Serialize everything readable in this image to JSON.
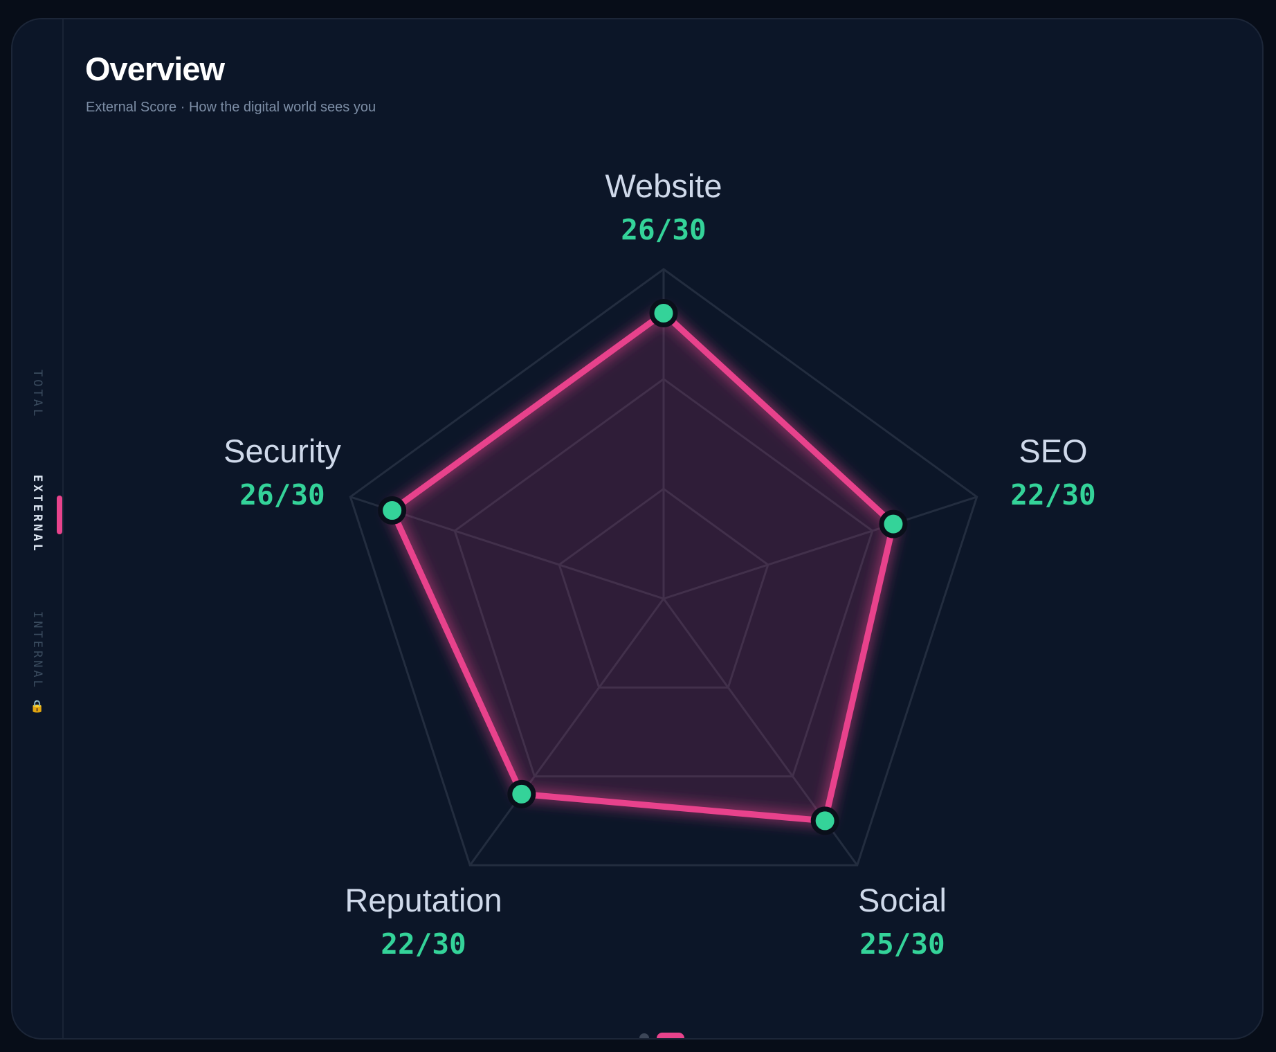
{
  "header": {
    "title": "Overview",
    "subtitle": "External Score · How the digital world sees you"
  },
  "sidebar": {
    "tabs": [
      {
        "label": "TOTAL",
        "active": false
      },
      {
        "label": "EXTERNAL",
        "active": true
      },
      {
        "label": "INTERNAL 🔒",
        "active": false,
        "icon": "lock-icon"
      }
    ]
  },
  "pagination": {
    "pages": 2,
    "active_index": 1
  },
  "colors": {
    "accent": "#e8438c",
    "score": "#34d399",
    "background": "#0c1628",
    "grid": "#232d3f"
  },
  "chart_data": {
    "type": "radar",
    "title": "",
    "categories": [
      "Website",
      "SEO",
      "Social",
      "Reputation",
      "Security"
    ],
    "values": [
      26,
      22,
      25,
      22,
      26
    ],
    "max": 30,
    "score_labels": [
      "26/30",
      "22/30",
      "25/30",
      "22/30",
      "26/30"
    ],
    "grid_levels": 3,
    "grid": true,
    "legend": "none"
  }
}
